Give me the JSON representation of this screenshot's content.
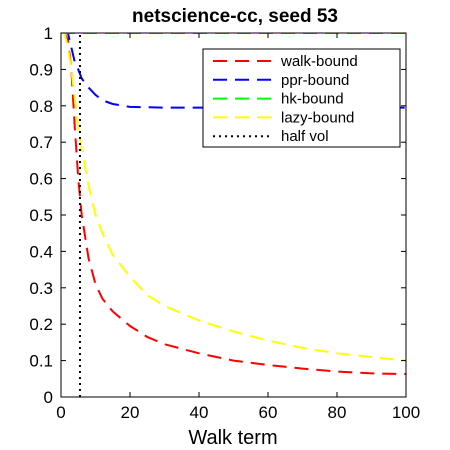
{
  "chart_data": {
    "type": "line",
    "title": "netscience-cc, seed 53",
    "xlabel": "Walk term",
    "ylabel": "",
    "xlim": [
      0,
      100
    ],
    "ylim": [
      0,
      1
    ],
    "xticks": [
      0,
      20,
      40,
      60,
      80,
      100
    ],
    "yticks": [
      0,
      0.1,
      0.2,
      0.3,
      0.4,
      0.5,
      0.6,
      0.7,
      0.8,
      0.9,
      1
    ],
    "grid": false,
    "legend_position": "top-right",
    "series": [
      {
        "name": "walk-bound",
        "color": "#ff0000",
        "style": "dashed",
        "x": [
          0,
          1,
          2,
          3,
          4,
          5,
          6,
          8,
          10,
          12,
          15,
          20,
          25,
          30,
          40,
          50,
          60,
          70,
          80,
          90,
          100
        ],
        "y": [
          1.0,
          1.0,
          0.98,
          0.9,
          0.74,
          0.6,
          0.5,
          0.38,
          0.31,
          0.27,
          0.235,
          0.195,
          0.165,
          0.145,
          0.12,
          0.1,
          0.088,
          0.078,
          0.07,
          0.065,
          0.063
        ]
      },
      {
        "name": "ppr-bound",
        "color": "#0000ff",
        "style": "dashed",
        "x": [
          0,
          1,
          2,
          3,
          4,
          5,
          6,
          8,
          10,
          12,
          15,
          20,
          30,
          40,
          50,
          60,
          70,
          80,
          90,
          100
        ],
        "y": [
          1.0,
          1.0,
          1.0,
          0.96,
          0.92,
          0.9,
          0.875,
          0.85,
          0.83,
          0.815,
          0.805,
          0.797,
          0.795,
          0.795,
          0.795,
          0.795,
          0.795,
          0.795,
          0.795,
          0.795
        ]
      },
      {
        "name": "hk-bound",
        "color": "#00ff00",
        "style": "dashed",
        "x": [
          0,
          100
        ],
        "y": [
          1.0,
          1.0
        ]
      },
      {
        "name": "lazy-bound",
        "color": "#ffff00",
        "style": "dashed",
        "x": [
          0,
          1,
          2,
          3,
          4,
          5,
          6,
          8,
          10,
          12,
          15,
          20,
          25,
          30,
          40,
          50,
          60,
          70,
          80,
          90,
          100
        ],
        "y": [
          1.0,
          1.0,
          0.96,
          0.9,
          0.82,
          0.74,
          0.68,
          0.58,
          0.5,
          0.45,
          0.39,
          0.33,
          0.28,
          0.25,
          0.21,
          0.18,
          0.155,
          0.135,
          0.12,
          0.11,
          0.1
        ]
      },
      {
        "name": "half vol",
        "color": "#000000",
        "style": "dotted",
        "x": [
          5.5,
          5.5
        ],
        "y": [
          0,
          1
        ]
      }
    ]
  }
}
